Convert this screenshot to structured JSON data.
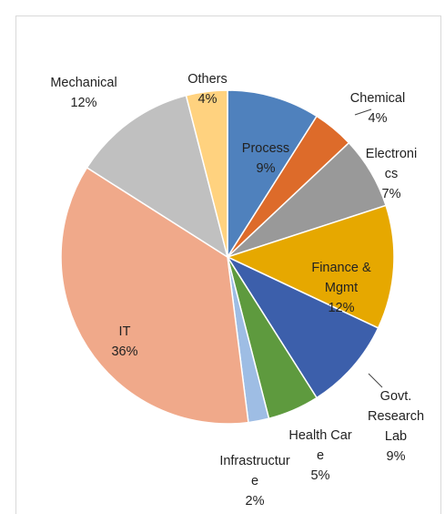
{
  "chart_data": {
    "type": "pie",
    "categories": [
      "Process",
      "Chemical",
      "Electronics",
      "Finance & Mgmt",
      "Govt. Research Lab",
      "Health Care",
      "Infrastructure",
      "IT",
      "Mechanical",
      "Others"
    ],
    "values": [
      9,
      4,
      7,
      12,
      9,
      5,
      2,
      36,
      12,
      4
    ],
    "value_labels": [
      "9%",
      "4%",
      "7%",
      "12%",
      "9%",
      "5%",
      "2%",
      "36%",
      "12%",
      "4%"
    ],
    "colors": [
      "#4f81bd",
      "#dd6b2a",
      "#999999",
      "#e6a800",
      "#3c5fab",
      "#5e9a3e",
      "#9ebde4",
      "#f0a98a",
      "#c0c0c0",
      "#ffd27f"
    ]
  }
}
